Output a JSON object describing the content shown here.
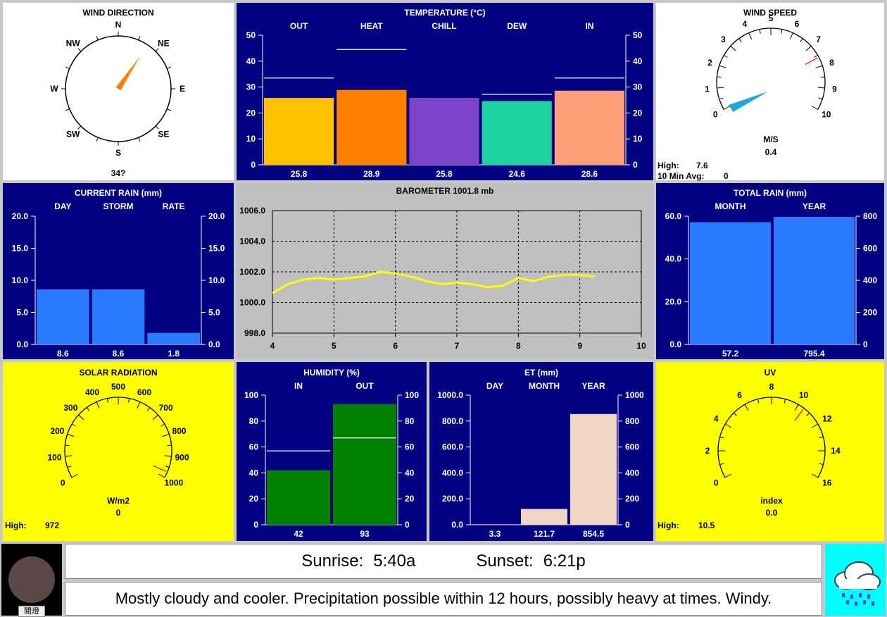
{
  "wind_direction": {
    "title": "WIND DIRECTION",
    "labels": [
      "N",
      "NE",
      "E",
      "SE",
      "S",
      "SW",
      "W",
      "NW"
    ],
    "value_text": "34?",
    "angle_deg": 34,
    "needle_color": "#ff8000"
  },
  "temperature": {
    "title": "TEMPERATURE  (°C)",
    "ylim": [
      0,
      50
    ],
    "ticks": [
      "0",
      "10",
      "20",
      "30",
      "40",
      "50"
    ],
    "bars": [
      {
        "label": "OUT",
        "value_text": "25.8",
        "value": 25.8,
        "high": 33.5,
        "color": "#ffc000"
      },
      {
        "label": "HEAT",
        "value_text": "28.9",
        "value": 28.9,
        "high": 44.5,
        "color": "#ff8000"
      },
      {
        "label": "CHILL",
        "value_text": "25.8",
        "value": 25.8,
        "high": null,
        "color": "#7b44c8"
      },
      {
        "label": "DEW",
        "value_text": "24.6",
        "value": 24.6,
        "high": 27.2,
        "color": "#1fd1a0"
      },
      {
        "label": "IN",
        "value_text": "28.6",
        "value": 28.6,
        "high": 33.5,
        "color": "#ffa078"
      }
    ]
  },
  "wind_speed": {
    "title": "WIND SPEED",
    "ticks": [
      "0",
      "1",
      "2",
      "3",
      "4",
      "5",
      "6",
      "7",
      "8",
      "9",
      "10"
    ],
    "unit": "M/S",
    "value_text": "0.4",
    "value": 0.4,
    "high_marker": 7.6,
    "high_label": "High:",
    "high_value": "7.6",
    "avg_label": "10 Min Avg:",
    "avg_value": "0",
    "needle_color": "#20a8d8"
  },
  "current_rain": {
    "title": "CURRENT RAIN  (mm)",
    "ylim": [
      0,
      20
    ],
    "ticks": [
      "0.0",
      "5.0",
      "10.0",
      "15.0",
      "20.0"
    ],
    "bars": [
      {
        "label": "DAY",
        "value_text": "8.6",
        "value": 8.6,
        "color": "#2a7aff"
      },
      {
        "label": "STORM",
        "value_text": "8.6",
        "value": 8.6,
        "color": "#2a7aff"
      },
      {
        "label": "RATE",
        "value_text": "1.8",
        "value": 1.8,
        "color": "#2a7aff"
      }
    ]
  },
  "barometer": {
    "title": "BAROMETER 1001.8 mb",
    "y_ticks": [
      "998.0",
      "1000.0",
      "1002.0",
      "1004.0",
      "1006.0"
    ],
    "x_ticks": [
      "4",
      "5",
      "6",
      "7",
      "8",
      "9",
      "10"
    ],
    "line_color": "#ffff00",
    "series": [
      [
        4,
        1000.6
      ],
      [
        4.25,
        1001.2
      ],
      [
        4.5,
        1001.5
      ],
      [
        4.75,
        1001.6
      ],
      [
        5,
        1001.5
      ],
      [
        5.25,
        1001.6
      ],
      [
        5.5,
        1001.7
      ],
      [
        5.75,
        1002.0
      ],
      [
        6,
        1001.9
      ],
      [
        6.25,
        1001.7
      ],
      [
        6.5,
        1001.4
      ],
      [
        6.75,
        1001.2
      ],
      [
        7,
        1001.3
      ],
      [
        7.25,
        1001.2
      ],
      [
        7.5,
        1001.0
      ],
      [
        7.75,
        1001.1
      ],
      [
        8,
        1001.6
      ],
      [
        8.25,
        1001.4
      ],
      [
        8.5,
        1001.7
      ],
      [
        8.75,
        1001.8
      ],
      [
        9,
        1001.8
      ],
      [
        9.25,
        1001.7
      ]
    ]
  },
  "total_rain": {
    "title": "TOTAL RAIN  (mm)",
    "left_ticks": [
      "0.0",
      "20.0",
      "40.0",
      "60.0"
    ],
    "right_ticks": [
      "0",
      "200",
      "400",
      "600",
      "800"
    ],
    "bars": [
      {
        "label": "MONTH",
        "value_text": "57.2",
        "value": 57.2,
        "max": 60,
        "color": "#2a7aff"
      },
      {
        "label": "YEAR",
        "value_text": "795.4",
        "value": 795.4,
        "max": 800,
        "color": "#2a7aff"
      }
    ]
  },
  "solar": {
    "title": "SOLAR RADIATION",
    "ticks": [
      "0",
      "100",
      "200",
      "300",
      "400",
      "500",
      "600",
      "700",
      "800",
      "900",
      "1000"
    ],
    "unit": "W/m2",
    "value_text": "0",
    "high_marker": 972,
    "high_label": "High:",
    "high_value": "972"
  },
  "humidity": {
    "title": "HUMIDITY  (%)",
    "ticks": [
      "0",
      "20",
      "40",
      "60",
      "80",
      "100"
    ],
    "bars": [
      {
        "label": "IN",
        "value_text": "42",
        "value": 42,
        "high": 57,
        "color": "#008000"
      },
      {
        "label": "OUT",
        "value_text": "93",
        "value": 93,
        "high": 67,
        "color": "#008000"
      }
    ]
  },
  "et": {
    "title": "ET  (mm)",
    "left_ticks": [
      "0.0",
      "200.0",
      "400.0",
      "600.0",
      "800.0",
      "1000.0"
    ],
    "right_ticks": [
      "0",
      "200",
      "400",
      "600",
      "800",
      "1000"
    ],
    "bars": [
      {
        "label": "DAY",
        "value_text": "3.3",
        "value": 3.3,
        "color": "#f0d4c4"
      },
      {
        "label": "MONTH",
        "value_text": "121.7",
        "value": 121.7,
        "color": "#f0d4c4"
      },
      {
        "label": "YEAR",
        "value_text": "854.5",
        "value": 854.5,
        "color": "#f0d4c4"
      }
    ]
  },
  "uv": {
    "title": "UV",
    "ticks": [
      "0",
      "2",
      "4",
      "6",
      "8",
      "10",
      "12",
      "14",
      "16"
    ],
    "unit": "index",
    "value_text": "0.0",
    "high_marker": 10.5,
    "high_label": "High:",
    "high_value": "10.5"
  },
  "moon_button_label": "關燈",
  "sun": {
    "sunrise_label": "Sunrise:",
    "sunrise_value": "5:40a",
    "sunset_label": "Sunset:",
    "sunset_value": "6:21p"
  },
  "forecast": "Mostly cloudy and cooler.  Precipitation possible within 12 hours, possibly heavy at times.  Windy.",
  "forecast_icon": "cloud-rain-icon",
  "colors": {
    "navy": "#000080",
    "yellow": "#ffff00",
    "white": "#ffffff",
    "gray": "#c0c0c0",
    "forecast_bg": "#00ffff"
  }
}
